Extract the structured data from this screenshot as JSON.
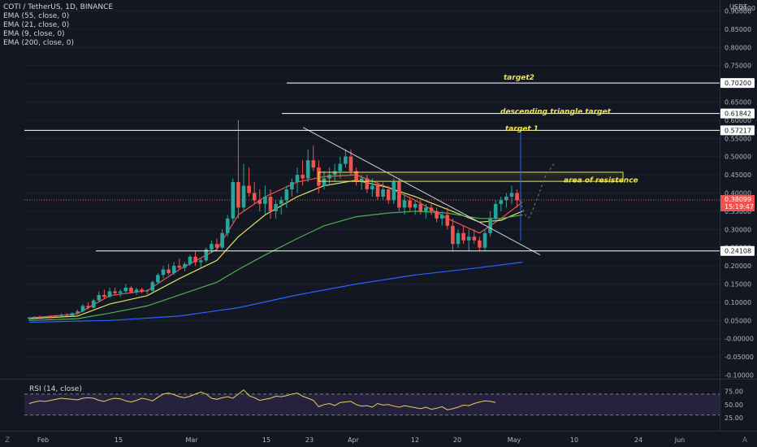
{
  "legend": {
    "title": "COTI / TetherUS, 1D, BINANCE",
    "ema_lines": [
      "EMA (55, close, 0)",
      "EMA (21, close, 0)",
      "EMA (9, close, 0)",
      "EMA (200, close, 0)"
    ],
    "rsi": "RSI (14, close)"
  },
  "currency": "USDT",
  "bottom": {
    "z_label": "Z",
    "a_label": "A"
  },
  "colors": {
    "bg": "#131722",
    "up": "#26a69a",
    "down": "#ef5350",
    "ema9": "#ef5350",
    "ema21": "#e6e05e",
    "ema55": "#4caf50",
    "ema200": "#2962ff",
    "annotation": "#f0e442",
    "rsi_line": "#e6cf5e",
    "rsi_band": "#7e57c2"
  },
  "chart_data": {
    "type": "candlestick",
    "y_ticks": [
      "0.90000",
      "0.85000",
      "0.80000",
      "0.75000",
      "0.70000",
      "0.65000",
      "0.60000",
      "0.55000",
      "0.50000",
      "0.45000",
      "0.40000",
      "0.35000",
      "0.30000",
      "0.25000",
      "0.20000",
      "0.15000",
      "0.10000",
      "0.05000",
      "-0.00000",
      "-0.05000",
      "-0.10000"
    ],
    "y_top_partial": "0.9000",
    "ylim": [
      -0.11,
      0.93
    ],
    "x_ticks": [
      "Feb",
      "15",
      "Mar",
      "15",
      "23",
      "Apr",
      "12",
      "20",
      "May",
      "10",
      "24",
      "Jun"
    ],
    "candles": [
      [
        0.055,
        0.06,
        0.05,
        0.058
      ],
      [
        0.058,
        0.062,
        0.055,
        0.06
      ],
      [
        0.06,
        0.063,
        0.057,
        0.059
      ],
      [
        0.059,
        0.062,
        0.056,
        0.061
      ],
      [
        0.061,
        0.064,
        0.058,
        0.06
      ],
      [
        0.06,
        0.063,
        0.057,
        0.062
      ],
      [
        0.062,
        0.07,
        0.06,
        0.065
      ],
      [
        0.065,
        0.07,
        0.062,
        0.063
      ],
      [
        0.063,
        0.072,
        0.061,
        0.07
      ],
      [
        0.07,
        0.08,
        0.066,
        0.075
      ],
      [
        0.075,
        0.095,
        0.072,
        0.09
      ],
      [
        0.09,
        0.1,
        0.08,
        0.085
      ],
      [
        0.085,
        0.11,
        0.083,
        0.105
      ],
      [
        0.105,
        0.13,
        0.1,
        0.12
      ],
      [
        0.12,
        0.135,
        0.11,
        0.115
      ],
      [
        0.115,
        0.14,
        0.112,
        0.13
      ],
      [
        0.13,
        0.14,
        0.12,
        0.125
      ],
      [
        0.125,
        0.135,
        0.115,
        0.13
      ],
      [
        0.13,
        0.15,
        0.125,
        0.14
      ],
      [
        0.14,
        0.145,
        0.125,
        0.128
      ],
      [
        0.128,
        0.14,
        0.12,
        0.135
      ],
      [
        0.135,
        0.14,
        0.125,
        0.13
      ],
      [
        0.13,
        0.135,
        0.122,
        0.132
      ],
      [
        0.132,
        0.16,
        0.128,
        0.155
      ],
      [
        0.155,
        0.18,
        0.15,
        0.175
      ],
      [
        0.175,
        0.2,
        0.165,
        0.19
      ],
      [
        0.19,
        0.205,
        0.175,
        0.18
      ],
      [
        0.18,
        0.21,
        0.175,
        0.2
      ],
      [
        0.2,
        0.22,
        0.19,
        0.195
      ],
      [
        0.195,
        0.21,
        0.185,
        0.205
      ],
      [
        0.205,
        0.23,
        0.2,
        0.225
      ],
      [
        0.225,
        0.24,
        0.2,
        0.21
      ],
      [
        0.21,
        0.22,
        0.195,
        0.215
      ],
      [
        0.215,
        0.25,
        0.21,
        0.245
      ],
      [
        0.245,
        0.27,
        0.235,
        0.26
      ],
      [
        0.26,
        0.275,
        0.24,
        0.25
      ],
      [
        0.25,
        0.3,
        0.245,
        0.29
      ],
      [
        0.29,
        0.34,
        0.28,
        0.33
      ],
      [
        0.33,
        0.44,
        0.32,
        0.43
      ],
      [
        0.43,
        0.6,
        0.33,
        0.36
      ],
      [
        0.36,
        0.48,
        0.35,
        0.42
      ],
      [
        0.42,
        0.47,
        0.39,
        0.4
      ],
      [
        0.4,
        0.43,
        0.37,
        0.38
      ],
      [
        0.38,
        0.41,
        0.35,
        0.37
      ],
      [
        0.37,
        0.42,
        0.34,
        0.39
      ],
      [
        0.39,
        0.41,
        0.33,
        0.35
      ],
      [
        0.35,
        0.38,
        0.33,
        0.37
      ],
      [
        0.37,
        0.39,
        0.34,
        0.38
      ],
      [
        0.38,
        0.42,
        0.36,
        0.41
      ],
      [
        0.41,
        0.44,
        0.39,
        0.43
      ],
      [
        0.43,
        0.47,
        0.4,
        0.45
      ],
      [
        0.45,
        0.49,
        0.42,
        0.44
      ],
      [
        0.44,
        0.52,
        0.43,
        0.49
      ],
      [
        0.49,
        0.53,
        0.46,
        0.47
      ],
      [
        0.47,
        0.49,
        0.4,
        0.42
      ],
      [
        0.42,
        0.46,
        0.41,
        0.44
      ],
      [
        0.44,
        0.47,
        0.42,
        0.45
      ],
      [
        0.45,
        0.48,
        0.43,
        0.46
      ],
      [
        0.46,
        0.5,
        0.44,
        0.48
      ],
      [
        0.48,
        0.52,
        0.47,
        0.5
      ],
      [
        0.5,
        0.52,
        0.45,
        0.46
      ],
      [
        0.46,
        0.47,
        0.42,
        0.43
      ],
      [
        0.43,
        0.45,
        0.41,
        0.44
      ],
      [
        0.44,
        0.45,
        0.4,
        0.41
      ],
      [
        0.41,
        0.44,
        0.39,
        0.42
      ],
      [
        0.42,
        0.43,
        0.38,
        0.39
      ],
      [
        0.39,
        0.43,
        0.38,
        0.41
      ],
      [
        0.41,
        0.42,
        0.37,
        0.38
      ],
      [
        0.38,
        0.44,
        0.37,
        0.43
      ],
      [
        0.43,
        0.44,
        0.35,
        0.36
      ],
      [
        0.36,
        0.4,
        0.34,
        0.38
      ],
      [
        0.38,
        0.39,
        0.35,
        0.36
      ],
      [
        0.36,
        0.38,
        0.34,
        0.37
      ],
      [
        0.37,
        0.38,
        0.34,
        0.35
      ],
      [
        0.35,
        0.37,
        0.33,
        0.36
      ],
      [
        0.36,
        0.37,
        0.34,
        0.35
      ],
      [
        0.35,
        0.36,
        0.32,
        0.33
      ],
      [
        0.33,
        0.35,
        0.31,
        0.34
      ],
      [
        0.34,
        0.36,
        0.3,
        0.31
      ],
      [
        0.31,
        0.33,
        0.24,
        0.26
      ],
      [
        0.26,
        0.3,
        0.25,
        0.29
      ],
      [
        0.29,
        0.31,
        0.26,
        0.27
      ],
      [
        0.27,
        0.3,
        0.24,
        0.28
      ],
      [
        0.28,
        0.3,
        0.26,
        0.27
      ],
      [
        0.27,
        0.28,
        0.24,
        0.25
      ],
      [
        0.25,
        0.3,
        0.24,
        0.29
      ],
      [
        0.29,
        0.35,
        0.28,
        0.33
      ],
      [
        0.33,
        0.38,
        0.32,
        0.37
      ],
      [
        0.37,
        0.39,
        0.35,
        0.38
      ],
      [
        0.38,
        0.4,
        0.36,
        0.39
      ],
      [
        0.39,
        0.42,
        0.37,
        0.4
      ],
      [
        0.4,
        0.41,
        0.36,
        0.38
      ]
    ],
    "ema_series": [
      {
        "name": "EMA (9, close, 0)",
        "color": "#ef5350",
        "values": [
          [
            0,
            0.057
          ],
          [
            9,
            0.068
          ],
          [
            15,
            0.118
          ],
          [
            22,
            0.132
          ],
          [
            28,
            0.19
          ],
          [
            35,
            0.245
          ],
          [
            39,
            0.34
          ],
          [
            44,
            0.39
          ],
          [
            50,
            0.43
          ],
          [
            55,
            0.445
          ],
          [
            61,
            0.45
          ],
          [
            67,
            0.415
          ],
          [
            72,
            0.38
          ],
          [
            78,
            0.33
          ],
          [
            84,
            0.29
          ],
          [
            88,
            0.33
          ],
          [
            92,
            0.375
          ]
        ]
      },
      {
        "name": "EMA (21, close, 0)",
        "color": "#e6e05e",
        "values": [
          [
            0,
            0.055
          ],
          [
            9,
            0.062
          ],
          [
            15,
            0.095
          ],
          [
            22,
            0.118
          ],
          [
            28,
            0.165
          ],
          [
            35,
            0.215
          ],
          [
            39,
            0.28
          ],
          [
            44,
            0.34
          ],
          [
            50,
            0.39
          ],
          [
            55,
            0.42
          ],
          [
            61,
            0.435
          ],
          [
            67,
            0.415
          ],
          [
            72,
            0.39
          ],
          [
            78,
            0.355
          ],
          [
            84,
            0.32
          ],
          [
            88,
            0.325
          ],
          [
            92,
            0.35
          ]
        ]
      },
      {
        "name": "EMA (55, close, 0)",
        "color": "#4caf50",
        "values": [
          [
            0,
            0.05
          ],
          [
            9,
            0.055
          ],
          [
            15,
            0.07
          ],
          [
            22,
            0.09
          ],
          [
            28,
            0.12
          ],
          [
            35,
            0.155
          ],
          [
            39,
            0.19
          ],
          [
            44,
            0.23
          ],
          [
            50,
            0.275
          ],
          [
            55,
            0.31
          ],
          [
            61,
            0.335
          ],
          [
            67,
            0.345
          ],
          [
            72,
            0.35
          ],
          [
            78,
            0.345
          ],
          [
            84,
            0.33
          ],
          [
            88,
            0.33
          ],
          [
            92,
            0.34
          ]
        ]
      },
      {
        "name": "EMA (200, close, 0)",
        "color": "#2962ff",
        "values": [
          [
            0,
            0.045
          ],
          [
            15,
            0.05
          ],
          [
            28,
            0.062
          ],
          [
            39,
            0.085
          ],
          [
            50,
            0.12
          ],
          [
            61,
            0.15
          ],
          [
            72,
            0.175
          ],
          [
            84,
            0.195
          ],
          [
            92,
            0.21
          ]
        ]
      }
    ],
    "horizontal_levels": [
      {
        "value": 0.702,
        "label": "0.70200",
        "color": "#ffffff"
      },
      {
        "value": 0.61842,
        "label": "0.61842",
        "color": "#ffffff"
      },
      {
        "value": 0.57217,
        "label": "0.57217",
        "color": "#ffffff"
      },
      {
        "value": 0.24108,
        "label": "0.24108",
        "color": "#ffffff"
      }
    ],
    "price": {
      "value": 0.38099,
      "label": "0.38099",
      "countdown": "15:19:47"
    },
    "annotations": [
      "target2",
      "descending triangle target",
      "target 1",
      "area of resistence"
    ],
    "rsi": {
      "ticks": [
        "75.00",
        "50.00",
        "25.00"
      ],
      "upper": 70,
      "lower": 30,
      "values": [
        52,
        55,
        57,
        56,
        58,
        60,
        62,
        61,
        60,
        59,
        62,
        63,
        62,
        58,
        56,
        60,
        62,
        61,
        57,
        55,
        58,
        62,
        60,
        57,
        64,
        70,
        72,
        69,
        65,
        63,
        66,
        70,
        74,
        70,
        62,
        60,
        63,
        65,
        62,
        70,
        78,
        67,
        63,
        58,
        60,
        62,
        66,
        65,
        67,
        70,
        72,
        66,
        62,
        58,
        46,
        50,
        52,
        48,
        54,
        55,
        56,
        50,
        47,
        48,
        45,
        52,
        49,
        50,
        47,
        45,
        48,
        46,
        44,
        42,
        45,
        41,
        43,
        46,
        40,
        42,
        45,
        49,
        48,
        52,
        55,
        57,
        56,
        54
      ]
    }
  }
}
